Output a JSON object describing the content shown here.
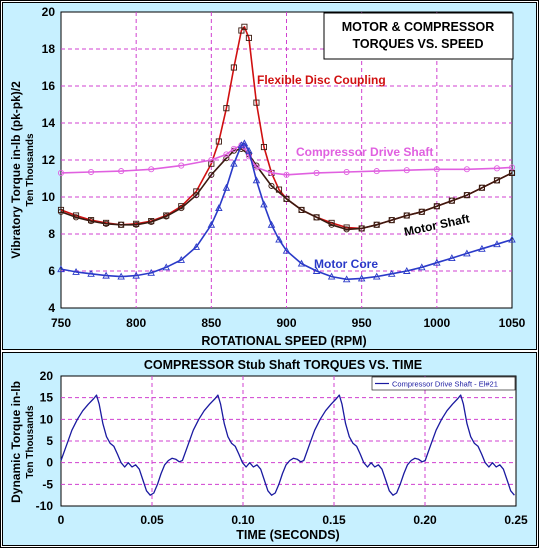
{
  "colors": {
    "panel_bg": "#c7f0ff",
    "plot_bg": "#ffffff",
    "grid": "#d040d0",
    "flexible": "#d01010",
    "motor_shaft": "#3a1a10",
    "compressor": "#e060e0",
    "motor_core": "#2a3ac8",
    "time_line": "#1a1aa0"
  },
  "chart_data": [
    {
      "type": "line",
      "title_lines": [
        "MOTOR & COMPRESSOR",
        "TORQUES VS. SPEED"
      ],
      "xlabel": "ROTATIONAL SPEED (RPM)",
      "ylabel": "Vibratory Torque in-lb (pk-pk)/2",
      "ylabel_sub": "Ten Thousands",
      "xlim": [
        750,
        1050
      ],
      "ylim": [
        4,
        20
      ],
      "xticks": [
        750,
        800,
        850,
        900,
        950,
        1000,
        1050
      ],
      "yticks": [
        4,
        6,
        8,
        10,
        12,
        14,
        16,
        18,
        20
      ],
      "grid": true,
      "annotations": [
        "Flexible Disc Coupling",
        "Compressor Drive Shaft",
        "Motor Shaft",
        "Motor Core"
      ],
      "series": [
        {
          "name": "Flexible Disc Coupling",
          "color_key": "flexible",
          "marker": "square",
          "x": [
            750,
            760,
            770,
            780,
            790,
            800,
            810,
            820,
            830,
            840,
            850,
            855,
            860,
            865,
            870,
            872,
            875,
            880,
            885,
            890,
            895,
            900,
            910,
            920,
            930,
            940,
            950,
            960,
            970,
            980,
            990,
            1000,
            1010,
            1020,
            1030,
            1040,
            1050
          ],
          "y": [
            9.3,
            9.0,
            8.75,
            8.6,
            8.5,
            8.55,
            8.7,
            9.0,
            9.5,
            10.3,
            11.8,
            13.0,
            14.8,
            17.0,
            19.0,
            19.2,
            18.6,
            15.1,
            12.7,
            11.3,
            10.4,
            9.9,
            9.3,
            8.9,
            8.6,
            8.35,
            8.3,
            8.5,
            8.75,
            9.0,
            9.2,
            9.5,
            9.8,
            10.1,
            10.5,
            10.9,
            11.3
          ]
        },
        {
          "name": "Motor Shaft",
          "color_key": "motor_shaft",
          "marker": "circle",
          "x": [
            750,
            760,
            770,
            780,
            790,
            800,
            810,
            820,
            830,
            840,
            850,
            860,
            865,
            870,
            875,
            880,
            890,
            900,
            910,
            920,
            930,
            940,
            950,
            960,
            970,
            980,
            990,
            1000,
            1010,
            1020,
            1030,
            1040,
            1050
          ],
          "y": [
            9.2,
            8.9,
            8.7,
            8.55,
            8.5,
            8.5,
            8.65,
            8.95,
            9.4,
            10.1,
            11.2,
            12.1,
            12.5,
            12.6,
            12.3,
            11.7,
            10.6,
            9.9,
            9.3,
            8.9,
            8.5,
            8.25,
            8.3,
            8.5,
            8.75,
            9.0,
            9.2,
            9.5,
            9.8,
            10.1,
            10.5,
            10.9,
            11.3
          ]
        },
        {
          "name": "Compressor Drive Shaft",
          "color_key": "compressor",
          "marker": "circle",
          "x": [
            750,
            770,
            790,
            810,
            830,
            850,
            860,
            865,
            870,
            872,
            875,
            880,
            890,
            900,
            920,
            940,
            960,
            980,
            1000,
            1020,
            1040,
            1050
          ],
          "y": [
            11.3,
            11.35,
            11.4,
            11.5,
            11.7,
            12.0,
            12.3,
            12.6,
            12.8,
            12.7,
            12.2,
            11.6,
            11.3,
            11.2,
            11.3,
            11.35,
            11.4,
            11.45,
            11.5,
            11.5,
            11.55,
            11.6
          ]
        },
        {
          "name": "Motor Core",
          "color_key": "motor_core",
          "marker": "triangle",
          "x": [
            750,
            760,
            770,
            780,
            790,
            800,
            810,
            820,
            830,
            840,
            850,
            855,
            860,
            865,
            870,
            872,
            875,
            880,
            885,
            890,
            895,
            900,
            910,
            920,
            930,
            940,
            950,
            960,
            970,
            980,
            990,
            1000,
            1010,
            1020,
            1030,
            1040,
            1050
          ],
          "y": [
            6.1,
            5.95,
            5.85,
            5.75,
            5.7,
            5.75,
            5.9,
            6.2,
            6.6,
            7.3,
            8.5,
            9.4,
            10.5,
            11.8,
            12.8,
            12.9,
            12.5,
            10.9,
            9.6,
            8.5,
            7.7,
            7.1,
            6.4,
            6.0,
            5.7,
            5.55,
            5.6,
            5.7,
            5.85,
            6.0,
            6.2,
            6.45,
            6.7,
            6.95,
            7.2,
            7.45,
            7.7
          ]
        }
      ]
    },
    {
      "type": "line",
      "title": "COMPRESSOR Stub Shaft TORQUES VS. TIME",
      "xlabel": "TIME (SECONDS)",
      "ylabel": "Dynamic Torque in-lb",
      "ylabel_sub": "Ten Thousands",
      "xlim": [
        0,
        0.25
      ],
      "ylim": [
        -10,
        20
      ],
      "xticks": [
        0,
        0.05,
        0.1,
        0.15,
        0.2,
        0.25
      ],
      "xtick_labels": [
        "0",
        "0.05",
        "0.10",
        "0.15",
        "0.20",
        "0.25"
      ],
      "yticks": [
        -10,
        -5,
        0,
        5,
        10,
        15,
        20
      ],
      "grid": true,
      "legend": "top-right",
      "series": [
        {
          "name": "Compressor Drive Shaft - El#21",
          "color_key": "time_line",
          "period": 0.0667,
          "x": [
            0,
            0.003,
            0.006,
            0.009,
            0.012,
            0.015,
            0.018,
            0.0195,
            0.021,
            0.023,
            0.025,
            0.027,
            0.029,
            0.031,
            0.033,
            0.035,
            0.037,
            0.039,
            0.041,
            0.043,
            0.045,
            0.047,
            0.049,
            0.051,
            0.053,
            0.055,
            0.057,
            0.059,
            0.061,
            0.063,
            0.065,
            0.0667
          ],
          "y": [
            0.5,
            4.0,
            7.5,
            10.0,
            12.0,
            13.5,
            14.8,
            15.6,
            13.5,
            9.0,
            6.0,
            4.5,
            3.8,
            2.0,
            0.0,
            -1.0,
            0.0,
            -1.0,
            -0.5,
            -1.5,
            -4.0,
            -6.5,
            -7.5,
            -7.0,
            -5.0,
            -2.5,
            -0.5,
            0.5,
            1.0,
            0.8,
            0.2,
            0.5
          ]
        }
      ]
    }
  ]
}
